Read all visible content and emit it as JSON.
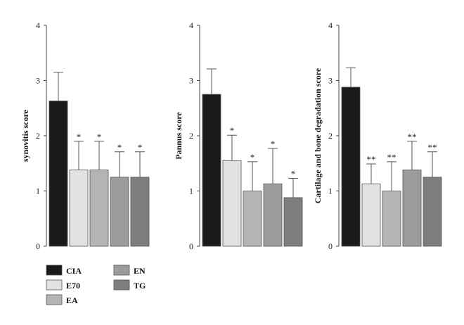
{
  "chart_data": [
    {
      "type": "bar",
      "categories": [
        "CIA",
        "E70",
        "EA",
        "EN",
        "TG"
      ],
      "values": [
        2.63,
        1.38,
        1.38,
        1.25,
        1.25
      ],
      "errors": [
        0.52,
        0.52,
        0.52,
        0.46,
        0.46
      ],
      "annotations": [
        "",
        "*",
        "*",
        "*",
        "*"
      ],
      "ylabel": "synovitis score",
      "ylim": [
        0,
        4
      ],
      "yticks": [
        "0",
        "1",
        "2",
        "3",
        "4"
      ]
    },
    {
      "type": "bar",
      "categories": [
        "CIA",
        "E70",
        "EA",
        "EN",
        "TG"
      ],
      "values": [
        2.75,
        1.55,
        1.0,
        1.13,
        0.88
      ],
      "errors": [
        0.46,
        0.46,
        0.53,
        0.64,
        0.35
      ],
      "annotations": [
        "",
        "*",
        "*",
        "*",
        "*"
      ],
      "ylabel": "Pannus score",
      "ylim": [
        0,
        4
      ],
      "yticks": [
        "0",
        "1",
        "2",
        "3",
        "4"
      ]
    },
    {
      "type": "bar",
      "categories": [
        "CIA",
        "E70",
        "EA",
        "EN",
        "TG"
      ],
      "values": [
        2.88,
        1.13,
        1.0,
        1.38,
        1.25
      ],
      "errors": [
        0.35,
        0.36,
        0.53,
        0.52,
        0.46
      ],
      "annotations": [
        "",
        "**",
        "**",
        "**",
        "**"
      ],
      "ylabel": "Cartilage and bone degradation score",
      "ylim": [
        0,
        4
      ],
      "yticks": [
        "0",
        "1",
        "2",
        "3",
        "4"
      ]
    }
  ],
  "legend": [
    {
      "label": "CIA",
      "color": "#1a1a1a"
    },
    {
      "label": "E70",
      "color": "#e2e2e2"
    },
    {
      "label": "EA",
      "color": "#b4b4b4"
    },
    {
      "label": "EN",
      "color": "#9c9c9c"
    },
    {
      "label": "TG",
      "color": "#7d7d7d"
    }
  ]
}
